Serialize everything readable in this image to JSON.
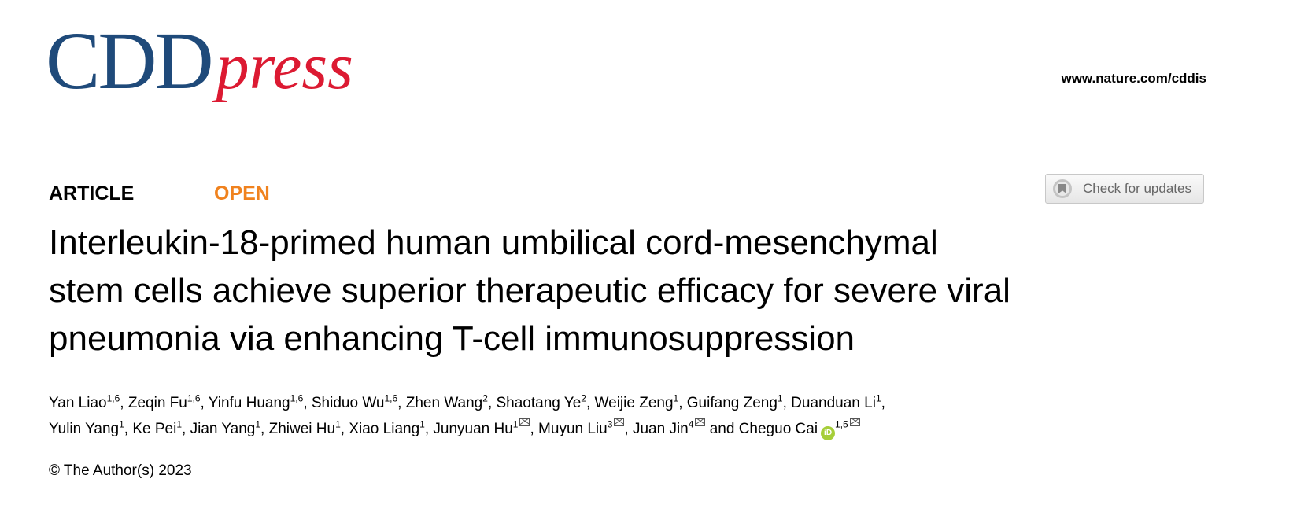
{
  "header": {
    "logo_text": "CDD press",
    "logo_main": "CDD",
    "logo_sub": "press",
    "url": "www.nature.com/cddis",
    "brand_blue": "#1f4a7a",
    "brand_red": "#dc1a32"
  },
  "article": {
    "type": "ARTICLE",
    "access": "OPEN",
    "access_color": "#f0821e",
    "check_updates": "Check for updates",
    "title_lines": [
      "Interleukin-18-primed human umbilical cord-mesenchymal",
      "stem cells achieve superior therapeutic efficacy for severe viral",
      "pneumonia via enhancing T-cell immunosuppression"
    ],
    "authors": [
      {
        "name": "Yan Liao",
        "aff": "1,6"
      },
      {
        "name": "Zeqin Fu",
        "aff": "1,6"
      },
      {
        "name": "Yinfu Huang",
        "aff": "1,6"
      },
      {
        "name": "Shiduo Wu",
        "aff": "1,6"
      },
      {
        "name": "Zhen Wang",
        "aff": "2"
      },
      {
        "name": "Shaotang Ye",
        "aff": "2"
      },
      {
        "name": "Weijie Zeng",
        "aff": "1"
      },
      {
        "name": "Guifang Zeng",
        "aff": "1"
      },
      {
        "name": "Duanduan Li",
        "aff": "1"
      },
      {
        "name": "Yulin Yang",
        "aff": "1"
      },
      {
        "name": "Ke Pei",
        "aff": "1"
      },
      {
        "name": "Jian Yang",
        "aff": "1"
      },
      {
        "name": "Zhiwei Hu",
        "aff": "1"
      },
      {
        "name": "Xiao Liang",
        "aff": "1"
      },
      {
        "name": "Junyuan Hu",
        "aff": "1",
        "email": true
      },
      {
        "name": "Muyun Liu",
        "aff": "3",
        "email": true
      },
      {
        "name": "Juan Jin",
        "aff": "4",
        "email": true
      },
      {
        "name": "Cheguo Cai",
        "aff": "1,5",
        "email": true,
        "orcid": true
      }
    ],
    "and_label": "and",
    "orcid_label": "iD",
    "copyright": "© The Author(s) 2023"
  }
}
